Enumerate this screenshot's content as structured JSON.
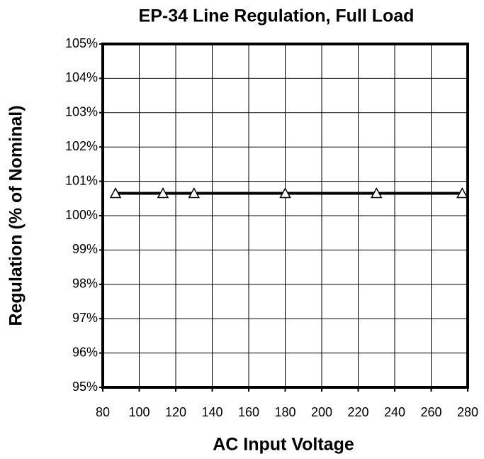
{
  "chart_data": {
    "type": "line",
    "title": "EP-34 Line Regulation, Full Load",
    "x_label": "AC Input Voltage",
    "y_label": "Regulation (% of Nominal)",
    "x": [
      87,
      113,
      130,
      180,
      230,
      277
    ],
    "series": [
      {
        "color": "#000000",
        "values": [
          100.65,
          100.65,
          100.65,
          100.65,
          100.65,
          100.65
        ]
      }
    ],
    "xlim": [
      80,
      280
    ],
    "xticks": [
      80,
      100,
      120,
      140,
      160,
      180,
      200,
      220,
      240,
      260,
      280
    ],
    "ylim": [
      95,
      105
    ],
    "yticks": [
      {
        "value": 95,
        "label": "95%"
      },
      {
        "value": 96,
        "label": "96%"
      },
      {
        "value": 97,
        "label": "97%"
      },
      {
        "value": 98,
        "label": "98%"
      },
      {
        "value": 99,
        "label": "99%"
      },
      {
        "value": 100,
        "label": "100%"
      },
      {
        "value": 101,
        "label": "101%"
      },
      {
        "value": 102,
        "label": "102%"
      },
      {
        "value": 103,
        "label": "103%"
      },
      {
        "value": 104,
        "label": "104%"
      },
      {
        "value": 105,
        "label": "105%"
      }
    ],
    "grid": true
  }
}
